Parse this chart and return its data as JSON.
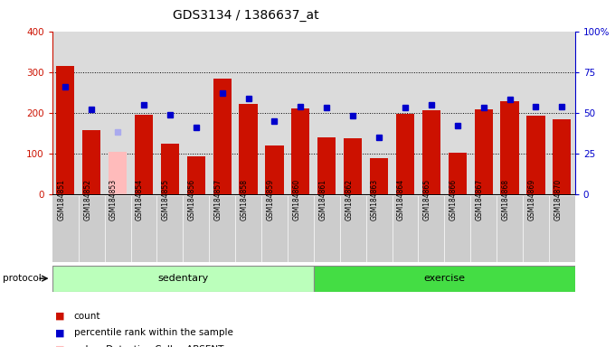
{
  "title": "GDS3134 / 1386637_at",
  "samples": [
    "GSM184851",
    "GSM184852",
    "GSM184853",
    "GSM184854",
    "GSM184855",
    "GSM184856",
    "GSM184857",
    "GSM184858",
    "GSM184859",
    "GSM184860",
    "GSM184861",
    "GSM184862",
    "GSM184863",
    "GSM184864",
    "GSM184865",
    "GSM184866",
    "GSM184867",
    "GSM184868",
    "GSM184869",
    "GSM184870"
  ],
  "count_values": [
    315,
    157,
    104,
    195,
    125,
    93,
    283,
    221,
    120,
    210,
    140,
    137,
    88,
    198,
    206,
    101,
    208,
    228,
    192,
    185
  ],
  "count_absent": [
    false,
    false,
    true,
    false,
    false,
    false,
    false,
    false,
    false,
    false,
    false,
    false,
    false,
    false,
    false,
    false,
    false,
    false,
    false,
    false
  ],
  "rank_values": [
    66,
    52,
    38,
    55,
    49,
    41,
    62,
    59,
    45,
    54,
    53,
    48,
    35,
    53,
    55,
    42,
    53,
    58,
    54,
    54
  ],
  "rank_absent": [
    false,
    false,
    true,
    false,
    false,
    false,
    false,
    false,
    false,
    false,
    false,
    false,
    false,
    false,
    false,
    false,
    false,
    false,
    false,
    false
  ],
  "sedentary_count": 10,
  "exercise_count": 10,
  "bar_color_normal": "#cc1100",
  "bar_color_absent": "#ffbbbb",
  "dot_color_normal": "#0000cc",
  "dot_color_absent": "#aaaaee",
  "protocol_sedentary_color": "#bbffbb",
  "protocol_exercise_color": "#44dd44",
  "ylim_left": [
    0,
    400
  ],
  "ylim_right": [
    0,
    100
  ],
  "yticks_left": [
    0,
    100,
    200,
    300,
    400
  ],
  "yticks_right": [
    0,
    25,
    50,
    75,
    100
  ],
  "ytick_labels_right": [
    "0",
    "25",
    "50",
    "75",
    "100%"
  ],
  "grid_values": [
    100,
    200,
    300
  ],
  "title_fontsize": 10
}
